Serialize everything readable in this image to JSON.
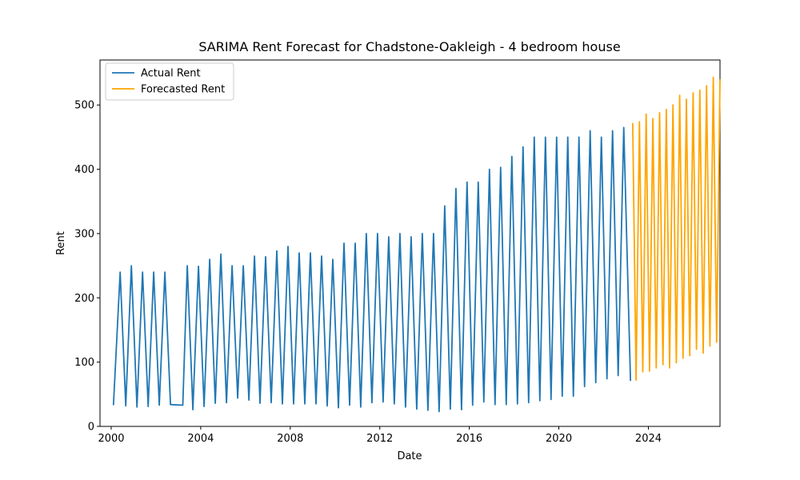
{
  "chart_data": {
    "type": "line",
    "title": "SARIMA Rent Forecast for Chadstone-Oakleigh - 4 bedroom house",
    "xlabel": "Date",
    "ylabel": "Rent",
    "xlim": [
      1999.5,
      2027.2
    ],
    "ylim": [
      0,
      570
    ],
    "x_ticks": [
      2000,
      2004,
      2008,
      2012,
      2016,
      2020,
      2024
    ],
    "x_tick_labels": [
      "2000",
      "2004",
      "2008",
      "2012",
      "2016",
      "2020",
      "2024"
    ],
    "y_ticks": [
      0,
      100,
      200,
      300,
      400,
      500
    ],
    "y_tick_labels": [
      "0",
      "100",
      "200",
      "300",
      "400",
      "500"
    ],
    "grid": false,
    "legend_position": "top-left",
    "series": [
      {
        "name": "Actual Rent",
        "color": "#1f77b4",
        "points": [
          [
            2000.1,
            33
          ],
          [
            2000.4,
            240
          ],
          [
            2000.65,
            32
          ],
          [
            2000.9,
            250
          ],
          [
            2001.15,
            30
          ],
          [
            2001.4,
            240
          ],
          [
            2001.65,
            31
          ],
          [
            2001.9,
            240
          ],
          [
            2002.15,
            33
          ],
          [
            2002.4,
            240
          ],
          [
            2002.65,
            34
          ],
          [
            2003.2,
            33
          ],
          [
            2003.4,
            250
          ],
          [
            2003.65,
            26
          ],
          [
            2003.9,
            249
          ],
          [
            2004.15,
            31
          ],
          [
            2004.4,
            260
          ],
          [
            2004.65,
            36
          ],
          [
            2004.9,
            268
          ],
          [
            2005.15,
            37
          ],
          [
            2005.4,
            250
          ],
          [
            2005.65,
            44
          ],
          [
            2005.9,
            250
          ],
          [
            2006.15,
            41
          ],
          [
            2006.4,
            265
          ],
          [
            2006.65,
            36
          ],
          [
            2006.9,
            264
          ],
          [
            2007.15,
            37
          ],
          [
            2007.4,
            273
          ],
          [
            2007.65,
            35
          ],
          [
            2007.9,
            280
          ],
          [
            2008.15,
            35
          ],
          [
            2008.4,
            270
          ],
          [
            2008.65,
            35
          ],
          [
            2008.9,
            270
          ],
          [
            2009.15,
            35
          ],
          [
            2009.4,
            265
          ],
          [
            2009.65,
            32
          ],
          [
            2009.9,
            260
          ],
          [
            2010.15,
            29
          ],
          [
            2010.4,
            285
          ],
          [
            2010.65,
            33
          ],
          [
            2010.9,
            285
          ],
          [
            2011.15,
            30
          ],
          [
            2011.4,
            300
          ],
          [
            2011.65,
            37
          ],
          [
            2011.9,
            300
          ],
          [
            2012.15,
            38
          ],
          [
            2012.4,
            295
          ],
          [
            2012.65,
            35
          ],
          [
            2012.9,
            300
          ],
          [
            2013.15,
            30
          ],
          [
            2013.4,
            295
          ],
          [
            2013.65,
            27
          ],
          [
            2013.9,
            300
          ],
          [
            2014.15,
            25
          ],
          [
            2014.4,
            300
          ],
          [
            2014.65,
            23
          ],
          [
            2014.9,
            343
          ],
          [
            2015.15,
            27
          ],
          [
            2015.4,
            370
          ],
          [
            2015.65,
            26
          ],
          [
            2015.9,
            380
          ],
          [
            2016.15,
            33
          ],
          [
            2016.4,
            380
          ],
          [
            2016.65,
            38
          ],
          [
            2016.9,
            400
          ],
          [
            2017.15,
            34
          ],
          [
            2017.4,
            403
          ],
          [
            2017.65,
            34
          ],
          [
            2017.9,
            420
          ],
          [
            2018.15,
            35
          ],
          [
            2018.4,
            435
          ],
          [
            2018.65,
            37
          ],
          [
            2018.9,
            450
          ],
          [
            2019.15,
            40
          ],
          [
            2019.4,
            450
          ],
          [
            2019.65,
            42
          ],
          [
            2019.9,
            450
          ],
          [
            2020.15,
            47
          ],
          [
            2020.4,
            450
          ],
          [
            2020.65,
            47
          ],
          [
            2020.9,
            450
          ],
          [
            2021.15,
            62
          ],
          [
            2021.4,
            460
          ],
          [
            2021.65,
            68
          ],
          [
            2021.9,
            450
          ],
          [
            2022.15,
            74
          ],
          [
            2022.4,
            460
          ],
          [
            2022.65,
            79
          ],
          [
            2022.9,
            465
          ],
          [
            2023.2,
            71
          ]
        ]
      },
      {
        "name": "Forecasted Rent",
        "color": "#ffa500",
        "points": [
          [
            2023.3,
            472
          ],
          [
            2023.45,
            72
          ],
          [
            2023.6,
            474
          ],
          [
            2023.75,
            85
          ],
          [
            2023.9,
            486
          ],
          [
            2024.05,
            86
          ],
          [
            2024.2,
            479
          ],
          [
            2024.35,
            91
          ],
          [
            2024.5,
            488
          ],
          [
            2024.65,
            96
          ],
          [
            2024.8,
            493
          ],
          [
            2024.95,
            91
          ],
          [
            2025.1,
            500
          ],
          [
            2025.25,
            99
          ],
          [
            2025.4,
            515
          ],
          [
            2025.55,
            106
          ],
          [
            2025.7,
            509
          ],
          [
            2025.85,
            110
          ],
          [
            2026.0,
            519
          ],
          [
            2026.15,
            120
          ],
          [
            2026.3,
            523
          ],
          [
            2026.45,
            114
          ],
          [
            2026.6,
            530
          ],
          [
            2026.75,
            125
          ],
          [
            2026.9,
            543
          ],
          [
            2027.05,
            131
          ],
          [
            2027.2,
            540
          ]
        ]
      }
    ]
  }
}
